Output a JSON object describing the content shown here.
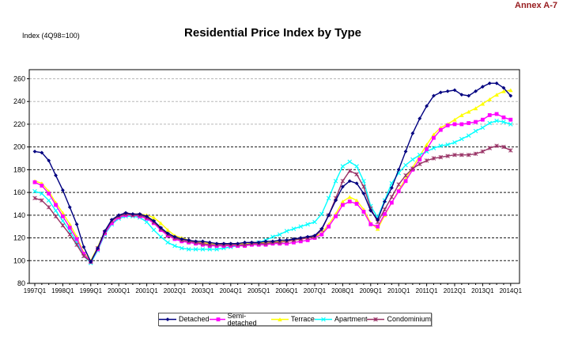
{
  "header": {
    "annex": "Annex A-7"
  },
  "chart_data": {
    "type": "line",
    "title": "Residential Price Index by Type",
    "unit_label": "Index (4Q98=100)",
    "x_tick_labels": [
      "1997Q1",
      "1998Q1",
      "1999Q1",
      "2000Q1",
      "2001Q1",
      "2002Q1",
      "2003Q1",
      "2004Q1",
      "2005Q1",
      "2006Q1",
      "2007Q1",
      "2008Q1",
      "2009Q1",
      "2010Q1",
      "2011Q1",
      "2012Q1",
      "2013Q1",
      "2014Q1"
    ],
    "quarters_per_tick": 4,
    "n_points": 69,
    "ylim": [
      80,
      268
    ],
    "y_ticks": [
      80,
      100,
      120,
      140,
      160,
      180,
      200,
      220,
      240,
      260
    ],
    "grid_on": true,
    "legend_position": "bottom",
    "series": [
      {
        "name": "Detached",
        "color": "#000080",
        "marker": "diamond",
        "values": [
          196,
          195,
          188,
          175,
          162,
          147,
          132,
          112,
          99,
          111,
          126,
          136,
          140,
          142,
          141,
          141,
          139,
          135,
          129,
          124,
          121,
          119,
          118,
          117,
          117,
          116,
          115,
          115,
          115,
          115,
          116,
          116,
          116,
          117,
          117,
          118,
          118,
          119,
          120,
          121,
          122,
          128,
          140,
          153,
          165,
          170,
          168,
          159,
          144,
          136,
          152,
          164,
          180,
          196,
          212,
          225,
          236,
          245,
          248,
          249,
          250,
          246,
          245,
          249,
          253,
          256,
          256,
          252,
          245
        ]
      },
      {
        "name": "Semi-detached",
        "color": "#FF00FF",
        "marker": "square",
        "values": [
          169,
          166,
          159,
          149,
          139,
          129,
          119,
          106,
          99,
          110,
          124,
          133,
          138,
          140,
          140,
          139,
          137,
          133,
          127,
          122,
          119,
          117,
          116,
          115,
          114,
          113,
          113,
          113,
          113,
          113,
          113,
          114,
          114,
          114,
          115,
          115,
          115,
          116,
          117,
          118,
          120,
          123,
          130,
          139,
          149,
          152,
          150,
          143,
          132,
          130,
          141,
          151,
          161,
          170,
          180,
          189,
          198,
          208,
          215,
          219,
          220,
          220,
          221,
          222,
          224,
          228,
          229,
          226,
          224
        ]
      },
      {
        "name": "Terrace",
        "color": "#FFFF00",
        "marker": "triangle",
        "values": [
          170,
          168,
          161,
          151,
          142,
          132,
          121,
          107,
          100,
          112,
          126,
          135,
          140,
          141,
          141,
          141,
          140,
          138,
          133,
          127,
          122,
          120,
          118,
          117,
          116,
          115,
          115,
          115,
          115,
          115,
          115,
          116,
          116,
          116,
          117,
          117,
          117,
          118,
          119,
          120,
          121,
          124,
          132,
          141,
          152,
          156,
          153,
          145,
          133,
          128,
          140,
          151,
          162,
          172,
          182,
          192,
          202,
          211,
          217,
          220,
          224,
          228,
          231,
          234,
          238,
          242,
          246,
          249,
          250
        ]
      },
      {
        "name": "Apartment",
        "color": "#00FFFF",
        "marker": "x",
        "values": [
          161,
          159,
          153,
          144,
          135,
          126,
          116,
          104,
          98,
          109,
          123,
          132,
          137,
          139,
          139,
          138,
          134,
          127,
          121,
          116,
          113,
          111,
          110,
          110,
          110,
          110,
          110,
          111,
          112,
          113,
          114,
          115,
          116,
          118,
          121,
          123,
          126,
          128,
          130,
          132,
          134,
          141,
          155,
          170,
          183,
          187,
          183,
          170,
          148,
          138,
          153,
          168,
          177,
          184,
          189,
          193,
          196,
          199,
          201,
          202,
          204,
          207,
          210,
          214,
          217,
          221,
          223,
          222,
          220
        ]
      },
      {
        "name": "Condominium",
        "color": "#993366",
        "marker": "asterisk",
        "values": [
          155,
          153,
          147,
          139,
          131,
          123,
          114,
          104,
          99,
          111,
          125,
          135,
          139,
          141,
          140,
          140,
          138,
          134,
          128,
          123,
          120,
          118,
          117,
          116,
          115,
          114,
          114,
          114,
          114,
          114,
          114,
          115,
          115,
          115,
          116,
          116,
          117,
          118,
          119,
          120,
          121,
          127,
          140,
          155,
          170,
          179,
          176,
          165,
          146,
          134,
          145,
          156,
          167,
          175,
          181,
          185,
          188,
          190,
          191,
          192,
          193,
          193,
          193,
          194,
          196,
          199,
          201,
          200,
          197
        ]
      }
    ]
  }
}
